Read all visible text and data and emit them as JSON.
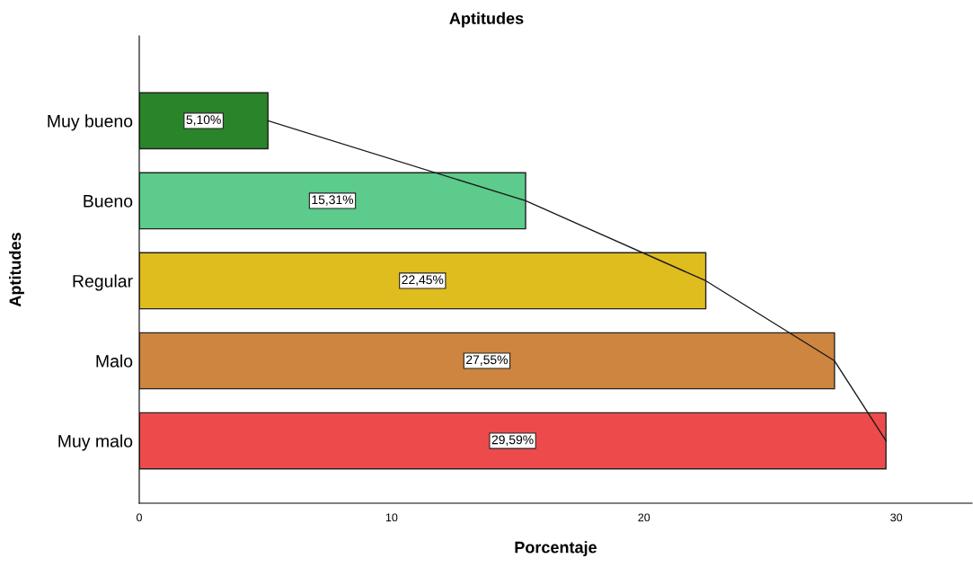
{
  "chart_data": {
    "type": "bar",
    "orientation": "horizontal",
    "title": "Aptitudes",
    "xlabel": "Porcentaje",
    "ylabel": "Aptitudes",
    "categories": [
      "Muy bueno",
      "Bueno",
      "Regular",
      "Malo",
      "Muy malo"
    ],
    "series": [
      {
        "values": [
          5.1,
          15.31,
          22.45,
          27.55,
          29.59
        ],
        "colors": [
          "#2a8429",
          "#5ccb8b",
          "#e0bd1e",
          "#cd853f",
          "#ed4b4b"
        ],
        "value_labels": [
          "5,10%",
          "15,31%",
          "22,45%",
          "27,55%",
          "29,59%"
        ]
      },
      {
        "type": "line",
        "color": "#1a1a1a",
        "values": [
          5.1,
          15.31,
          22.45,
          27.55,
          29.59
        ]
      }
    ],
    "xlim": [
      0,
      33
    ],
    "xticks": [
      0,
      10,
      20,
      30
    ],
    "grid": false,
    "legend": false
  }
}
